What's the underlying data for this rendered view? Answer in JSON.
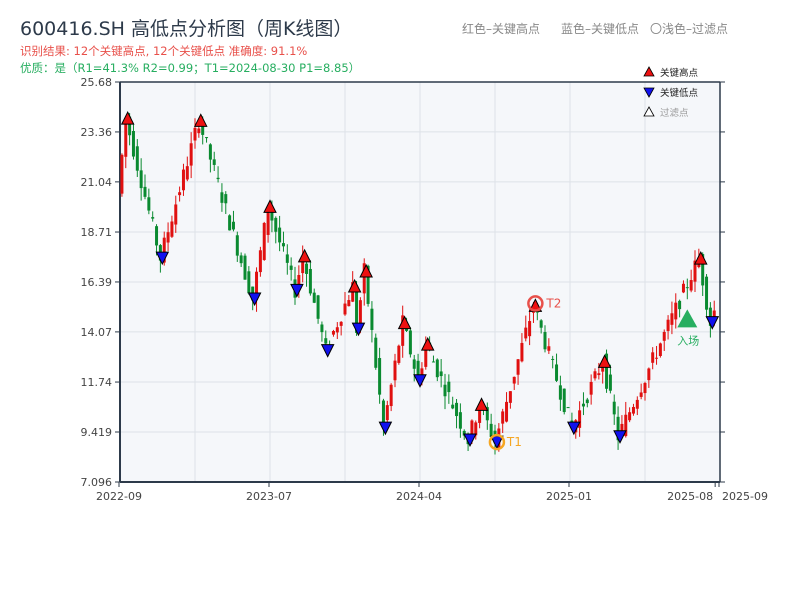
{
  "title": "600416.SH 高低点分析图（周K线图）",
  "subtitle_result": "识别结果: 12个关键高点, 12个关键低点   准确度: 91.1%",
  "subtitle_quality": "优质：是（R1=41.3%  R2=0.99；T1=2024-08-30 P1=8.85）",
  "notes": {
    "red": "红色–关键高点",
    "blue": "蓝色–关键低点",
    "light": "〇浅色–过滤点"
  },
  "legend": [
    {
      "label": "关键高点",
      "color": "#ee1111"
    },
    {
      "label": "关键低点",
      "color": "#1111ee"
    },
    {
      "label": "过滤点",
      "color": "#ffffff"
    }
  ],
  "colors": {
    "up": "#e01010",
    "down": "#0a8a30",
    "bg": "#f5f7fa",
    "grid": "#dde2e8",
    "axis": "#2d3a4a",
    "t1": "#f5a623",
    "t2": "#e8504a",
    "entry": "#27ae60"
  },
  "chart_data": {
    "type": "candlestick",
    "title": "600416.SH 高低点分析图（周K线图）",
    "ylim": [
      7.096,
      25.68
    ],
    "yticks": [
      "7.096",
      "9.419",
      "11.74",
      "14.07",
      "16.39",
      "18.71",
      "21.04",
      "23.36",
      "25.68"
    ],
    "ytick_values": [
      7.096,
      9.419,
      11.74,
      14.07,
      16.39,
      18.71,
      21.04,
      23.36,
      25.68
    ],
    "xlim_weeks": [
      0,
      156
    ],
    "xticks": [
      {
        "label": "2022-09",
        "week": 0
      },
      {
        "label": "2023-07",
        "week": 39
      },
      {
        "label": "2024-04",
        "week": 78
      },
      {
        "label": "2025-01",
        "week": 117
      },
      {
        "label": "2025-08",
        "week": 155
      },
      {
        "label": "2025-09",
        "week": 156
      }
    ],
    "price_path": [
      [
        0,
        20.5
      ],
      [
        2,
        24.0
      ],
      [
        11,
        17.5
      ],
      [
        21,
        23.9
      ],
      [
        35,
        15.6
      ],
      [
        39,
        19.9
      ],
      [
        46,
        16.0
      ],
      [
        48,
        17.6
      ],
      [
        54,
        13.2
      ],
      [
        61,
        16.2
      ],
      [
        62,
        14.2
      ],
      [
        64,
        16.9
      ],
      [
        69,
        9.6
      ],
      [
        74,
        14.5
      ],
      [
        78,
        11.8
      ],
      [
        80,
        13.5
      ],
      [
        91,
        9.05
      ],
      [
        94,
        10.7
      ],
      [
        98,
        8.95
      ],
      [
        108,
        15.3
      ],
      [
        118,
        9.6
      ],
      [
        126,
        12.7
      ],
      [
        130,
        9.2
      ],
      [
        151,
        17.5
      ],
      [
        154,
        14.5
      ],
      [
        156,
        15.6
      ]
    ],
    "key_highs": [
      [
        2,
        24.0
      ],
      [
        21,
        23.9
      ],
      [
        39,
        19.9
      ],
      [
        48,
        17.6
      ],
      [
        61,
        16.2
      ],
      [
        64,
        16.9
      ],
      [
        74,
        14.5
      ],
      [
        80,
        13.5
      ],
      [
        94,
        10.7
      ],
      [
        108,
        15.3
      ],
      [
        126,
        12.7
      ],
      [
        151,
        17.5
      ]
    ],
    "key_lows": [
      [
        11,
        17.5
      ],
      [
        35,
        15.6
      ],
      [
        46,
        16.0
      ],
      [
        54,
        13.2
      ],
      [
        62,
        14.2
      ],
      [
        69,
        9.6
      ],
      [
        78,
        11.8
      ],
      [
        91,
        9.05
      ],
      [
        98,
        8.95
      ],
      [
        118,
        9.6
      ],
      [
        130,
        9.2
      ],
      [
        154,
        14.5
      ]
    ],
    "annotations": [
      {
        "label": "T1",
        "week": 98,
        "price": 8.95
      },
      {
        "label": "T2",
        "week": 108,
        "price": 15.3
      },
      {
        "label": "入场",
        "week": 147.5,
        "price": 14.7
      }
    ]
  }
}
